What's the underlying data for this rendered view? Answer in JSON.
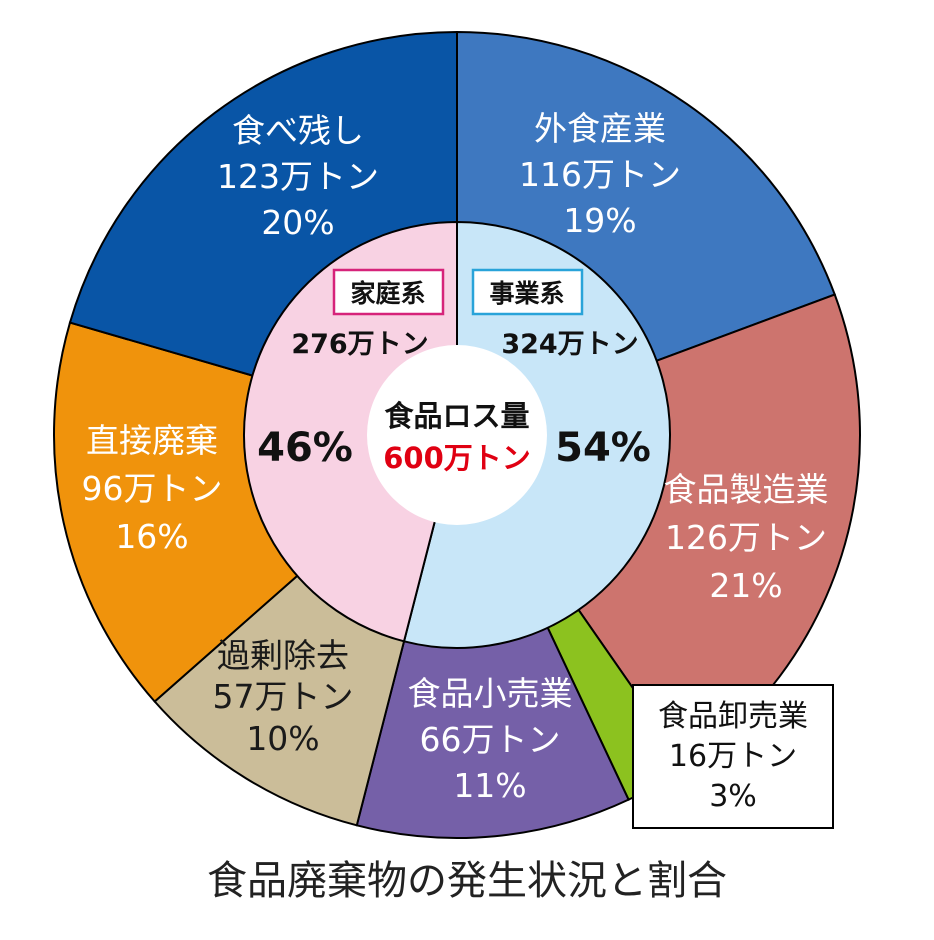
{
  "chart_data": {
    "type": "pie",
    "center": {
      "title": "食品ロス量",
      "total": "600万トン",
      "total_color": "#e00012"
    },
    "groups": [
      {
        "tag": "家庭系",
        "amount": "276万トン",
        "percent": "46%",
        "tag_color": "#d6237a",
        "fill": "#f8d2e3"
      },
      {
        "tag": "事業系",
        "amount": "324万トン",
        "percent": "54%",
        "tag_color": "#29a3d9",
        "fill": "#c8e6f8"
      }
    ],
    "slices": [
      {
        "name": "外食産業",
        "amount": "116万トン",
        "percent": "19%",
        "value": 116,
        "color": "#3e78c0",
        "group": "事業系"
      },
      {
        "name": "食品製造業",
        "amount": "126万トン",
        "percent": "21%",
        "value": 126,
        "color": "#cd746e",
        "group": "事業系"
      },
      {
        "name": "食品卸売業",
        "amount": "16万トン",
        "percent": "3%",
        "value": 16,
        "color": "#8cc21f",
        "group": "事業系"
      },
      {
        "name": "食品小売業",
        "amount": "66万トン",
        "percent": "11%",
        "value": 66,
        "color": "#7560a8",
        "group": "事業系"
      },
      {
        "name": "過剰除去",
        "amount": "57万トン",
        "percent": "10%",
        "value": 57,
        "color": "#cbbd99",
        "group": "家庭系"
      },
      {
        "name": "直接廃棄",
        "amount": "96万トン",
        "percent": "16%",
        "value": 96,
        "color": "#f0930c",
        "group": "家庭系"
      },
      {
        "name": "食べ残し",
        "amount": "123万トン",
        "percent": "20%",
        "value": 123,
        "color": "#0955a6",
        "group": "家庭系"
      }
    ]
  },
  "caption": "食品廃棄物の発生状況と割合"
}
